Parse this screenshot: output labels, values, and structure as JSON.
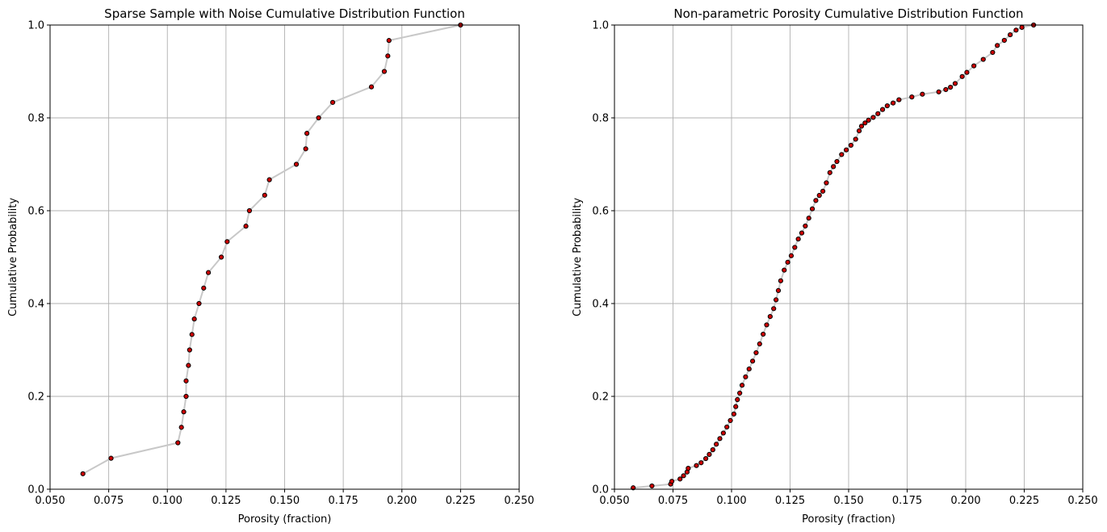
{
  "chart_data": [
    {
      "type": "scatter",
      "title": "Sparse Sample with Noise Cumulative Distribution Function",
      "xlabel": "Porosity (fraction)",
      "ylabel": "Cumulative Probability",
      "xlim": [
        0.05,
        0.25
      ],
      "ylim": [
        0.0,
        1.0
      ],
      "xticks": [
        "0.050",
        "0.075",
        "0.100",
        "0.125",
        "0.150",
        "0.175",
        "0.200",
        "0.225",
        "0.250"
      ],
      "yticks": [
        "0.0",
        "0.2",
        "0.4",
        "0.6",
        "0.8",
        "1.0"
      ],
      "grid": true,
      "connected": true,
      "line_color": "#c8c8c8",
      "marker_color": "#cc0000",
      "x": [
        0.064,
        0.076,
        0.1045,
        0.106,
        0.107,
        0.108,
        0.108,
        0.109,
        0.1095,
        0.1105,
        0.1115,
        0.1135,
        0.1155,
        0.1175,
        0.123,
        0.1255,
        0.1335,
        0.135,
        0.1415,
        0.1435,
        0.155,
        0.159,
        0.1595,
        0.1645,
        0.1705,
        0.187,
        0.1925,
        0.194,
        0.1945,
        0.225
      ],
      "y": [
        0.0333,
        0.0667,
        0.1,
        0.1333,
        0.1667,
        0.2,
        0.2333,
        0.2667,
        0.3,
        0.3333,
        0.3667,
        0.4,
        0.4333,
        0.4667,
        0.5,
        0.5333,
        0.5667,
        0.6,
        0.6333,
        0.6667,
        0.7,
        0.7333,
        0.7667,
        0.8,
        0.8333,
        0.8667,
        0.9,
        0.9333,
        0.9667,
        1.0
      ]
    },
    {
      "type": "scatter",
      "title": "Non-parametric Porosity Cumulative Distribution Function",
      "xlabel": "Porosity (fraction)",
      "ylabel": "Cumulative Probability",
      "xlim": [
        0.05,
        0.25
      ],
      "ylim": [
        0.0,
        1.0
      ],
      "xticks": [
        "0.050",
        "0.075",
        "0.100",
        "0.125",
        "0.150",
        "0.175",
        "0.200",
        "0.225",
        "0.250"
      ],
      "yticks": [
        "0.0",
        "0.2",
        "0.4",
        "0.6",
        "0.8",
        "1.0"
      ],
      "grid": true,
      "connected": true,
      "line_color": "#c8c8c8",
      "marker_color": "#cc0000",
      "x": [
        0.058,
        0.066,
        0.074,
        0.0745,
        0.078,
        0.0795,
        0.081,
        0.0815,
        0.085,
        0.087,
        0.089,
        0.0905,
        0.092,
        0.0935,
        0.095,
        0.0965,
        0.098,
        0.0995,
        0.101,
        0.1018,
        0.1025,
        0.1035,
        0.1045,
        0.106,
        0.1075,
        0.109,
        0.1105,
        0.112,
        0.1135,
        0.115,
        0.1165,
        0.118,
        0.119,
        0.12,
        0.121,
        0.1225,
        0.124,
        0.1255,
        0.127,
        0.1285,
        0.13,
        0.1315,
        0.133,
        0.1345,
        0.136,
        0.1375,
        0.139,
        0.1405,
        0.142,
        0.1435,
        0.145,
        0.147,
        0.149,
        0.151,
        0.153,
        0.1545,
        0.1555,
        0.157,
        0.1585,
        0.1605,
        0.1625,
        0.1645,
        0.1665,
        0.169,
        0.1715,
        0.177,
        0.1815,
        0.1885,
        0.1915,
        0.1935,
        0.1955,
        0.1985,
        0.2005,
        0.2035,
        0.2075,
        0.2115,
        0.2135,
        0.2165,
        0.219,
        0.2215,
        0.224,
        0.229
      ],
      "y": [
        0.003,
        0.007,
        0.011,
        0.017,
        0.022,
        0.029,
        0.037,
        0.045,
        0.051,
        0.057,
        0.066,
        0.075,
        0.085,
        0.097,
        0.109,
        0.121,
        0.134,
        0.148,
        0.162,
        0.178,
        0.193,
        0.207,
        0.224,
        0.242,
        0.259,
        0.276,
        0.294,
        0.313,
        0.334,
        0.354,
        0.372,
        0.389,
        0.408,
        0.428,
        0.449,
        0.472,
        0.489,
        0.503,
        0.521,
        0.539,
        0.552,
        0.567,
        0.584,
        0.604,
        0.622,
        0.633,
        0.642,
        0.66,
        0.682,
        0.695,
        0.706,
        0.721,
        0.731,
        0.741,
        0.754,
        0.772,
        0.782,
        0.789,
        0.795,
        0.801,
        0.809,
        0.818,
        0.826,
        0.832,
        0.839,
        0.845,
        0.851,
        0.856,
        0.861,
        0.866,
        0.874,
        0.889,
        0.898,
        0.912,
        0.926,
        0.941,
        0.956,
        0.967,
        0.979,
        0.989,
        0.995,
        1.0
      ]
    }
  ]
}
